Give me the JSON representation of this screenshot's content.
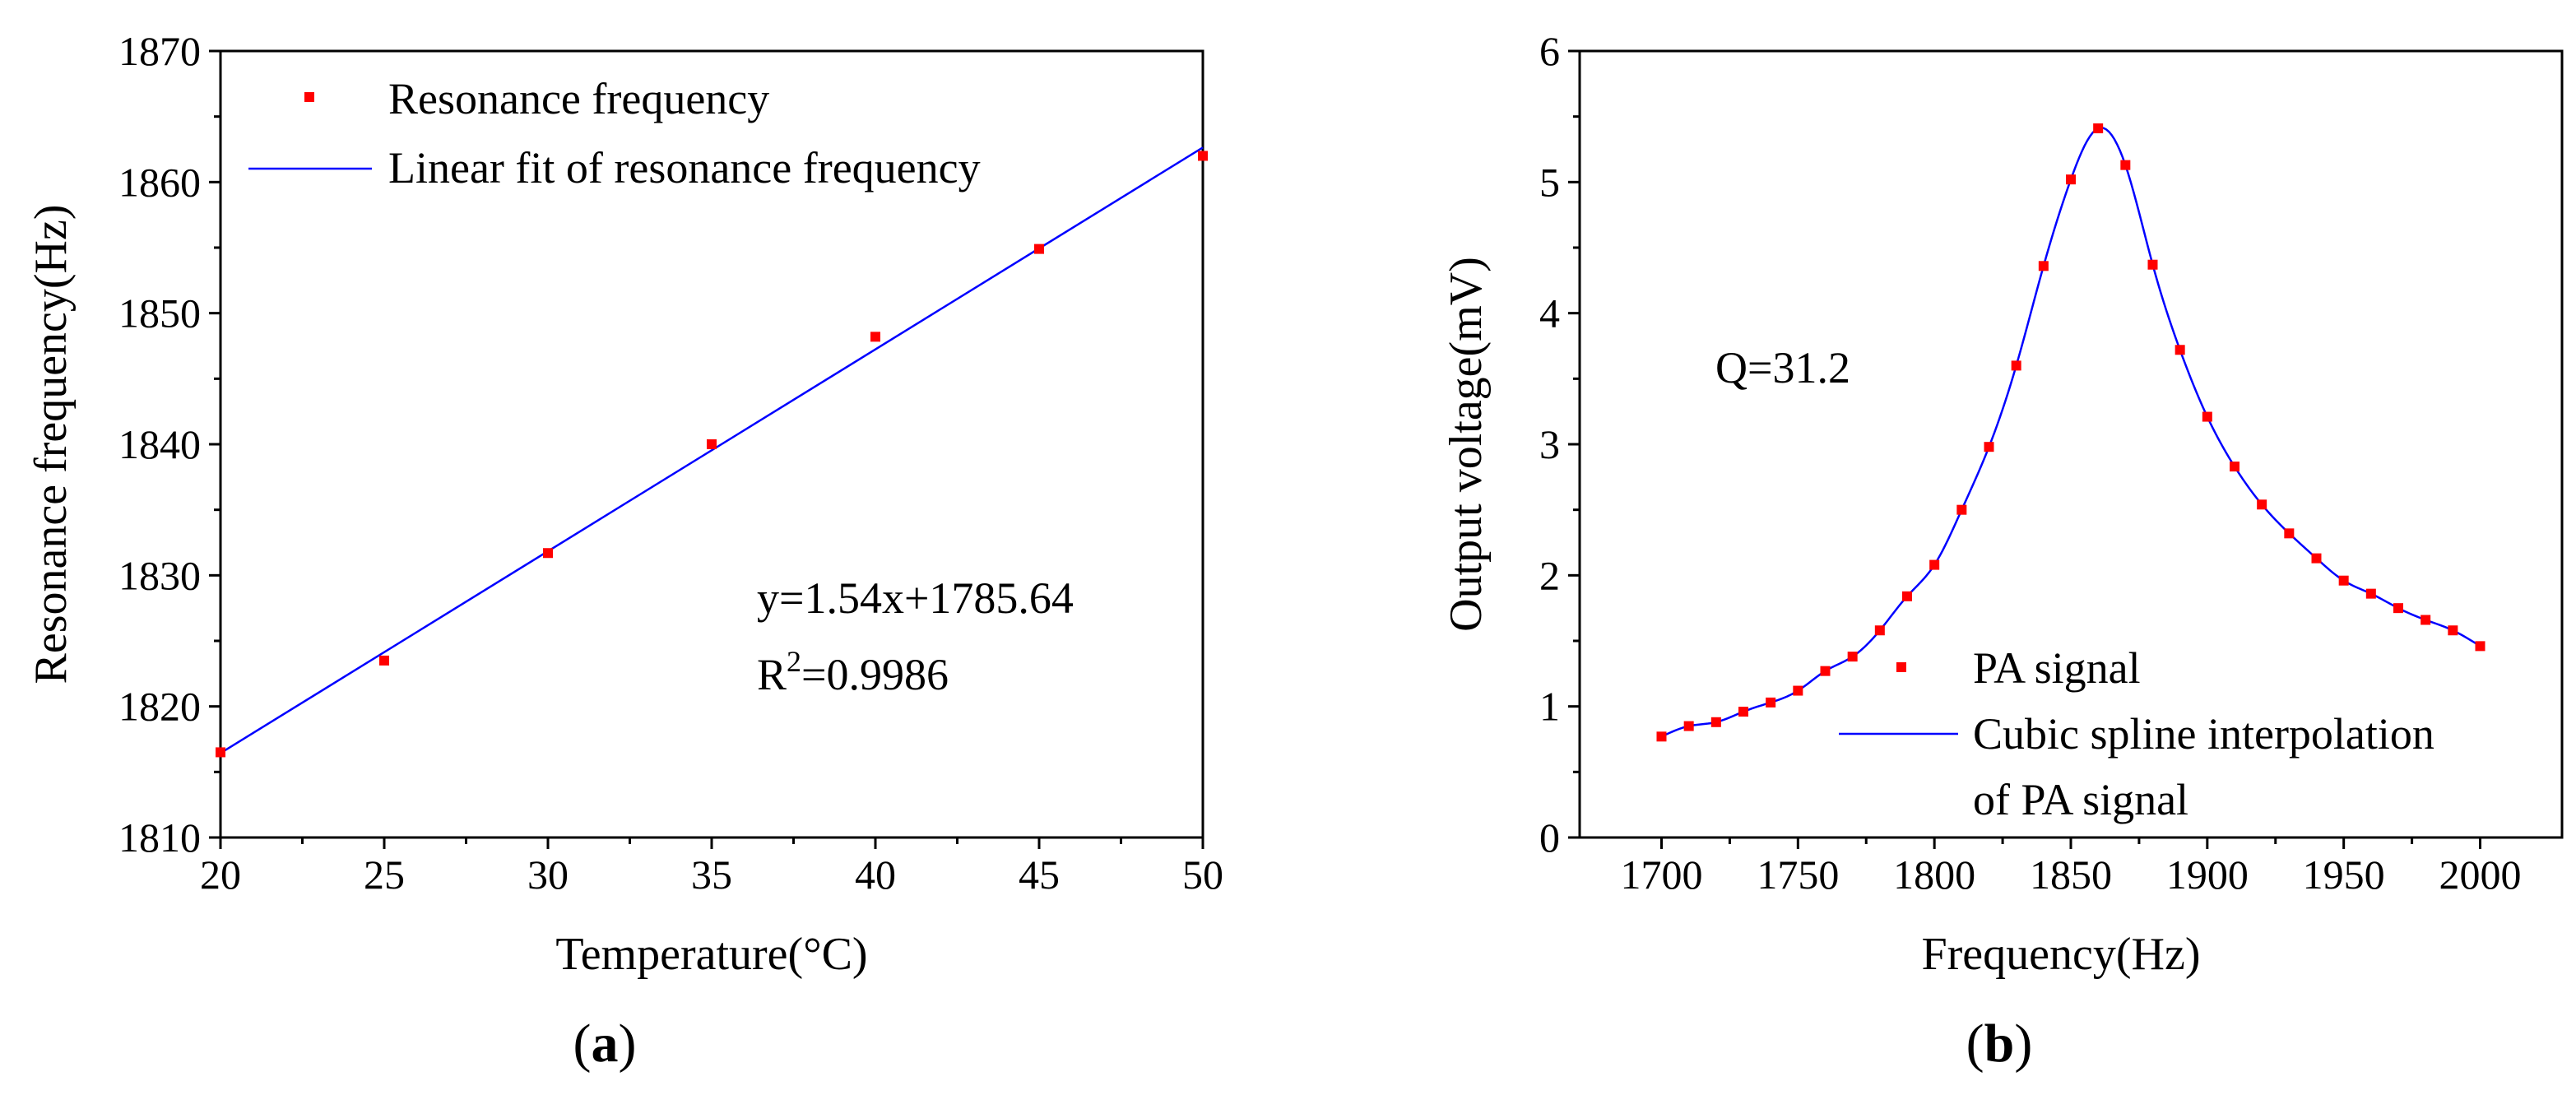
{
  "chart_data": [
    {
      "panel": "a",
      "panel_label": "a",
      "type": "scatter",
      "xlabel": "Temperature(°C)",
      "ylabel": "Resonance frequency(Hz)",
      "xlim": [
        20,
        50
      ],
      "ylim": [
        1810,
        1870
      ],
      "xticks": [
        20,
        25,
        30,
        35,
        40,
        45,
        50
      ],
      "yticks": [
        1810,
        1820,
        1830,
        1840,
        1850,
        1860,
        1870
      ],
      "series": [
        {
          "name": "Resonance frequency",
          "kind": "points",
          "color": "#ff0000",
          "x": [
            20,
            25,
            30,
            35,
            40,
            45,
            50
          ],
          "y": [
            1816.5,
            1823.5,
            1831.7,
            1840.0,
            1848.2,
            1854.9,
            1862.0
          ]
        },
        {
          "name": "Linear fit of resonance frequency",
          "kind": "line",
          "color": "#0000ff",
          "slope": 1.54,
          "intercept": 1785.64
        }
      ],
      "annotation": {
        "equation": "y=1.54x+1785.64",
        "r2_prefix": "R",
        "r2_sup": "2",
        "r2_value": "=0.9986"
      }
    },
    {
      "panel": "b",
      "panel_label": "b",
      "type": "scatter",
      "xlabel": "Frequency(Hz)",
      "ylabel": "Output voltage(mV)",
      "xlim": [
        1670,
        2030
      ],
      "ylim": [
        0,
        6
      ],
      "xticks": [
        1700,
        1750,
        1800,
        1850,
        1900,
        1950,
        2000
      ],
      "yticks": [
        0,
        1,
        2,
        3,
        4,
        5,
        6
      ],
      "series": [
        {
          "name": "PA signal",
          "kind": "points",
          "color": "#ff0000",
          "x": [
            1700,
            1710,
            1720,
            1730,
            1740,
            1750,
            1760,
            1770,
            1780,
            1790,
            1800,
            1810,
            1820,
            1830,
            1840,
            1850,
            1860,
            1870,
            1880,
            1890,
            1900,
            1910,
            1920,
            1930,
            1940,
            1950,
            1960,
            1970,
            1980,
            1990,
            2000
          ],
          "y": [
            0.77,
            0.85,
            0.88,
            0.96,
            1.03,
            1.12,
            1.27,
            1.38,
            1.58,
            1.84,
            2.08,
            2.5,
            2.98,
            3.6,
            4.36,
            5.02,
            5.41,
            5.13,
            4.37,
            3.72,
            3.21,
            2.83,
            2.54,
            2.32,
            2.13,
            1.96,
            1.86,
            1.75,
            1.66,
            1.58,
            1.46
          ]
        },
        {
          "name": "Cubic spline interpolation",
          "name_line2": "of PA signal",
          "kind": "line",
          "color": "#0000ff"
        }
      ],
      "annotation": {
        "text": "Q=31.2"
      }
    }
  ]
}
